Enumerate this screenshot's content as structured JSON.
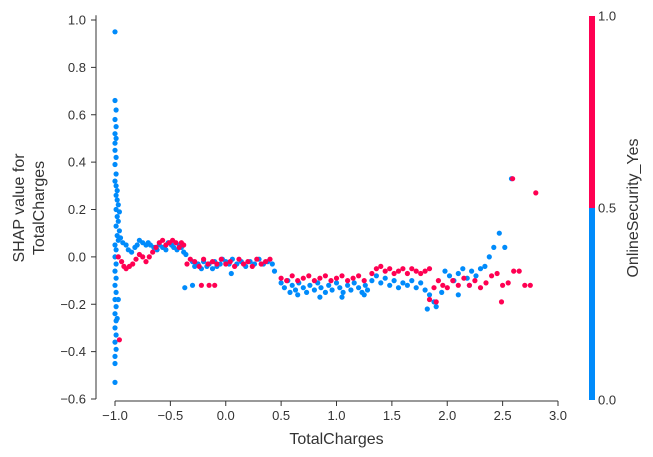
{
  "chart_data": {
    "type": "scatter",
    "xlabel": "TotalCharges",
    "ylabel_line1": "SHAP value for",
    "ylabel_line2": "TotalCharges",
    "xlim": [
      -1.15,
      3.0
    ],
    "ylim": [
      -0.6,
      1.02
    ],
    "xticks": [
      -1.0,
      -0.5,
      0.0,
      0.5,
      1.0,
      1.5,
      2.0,
      2.5,
      3.0
    ],
    "xtick_labels": [
      "−1.0",
      "−0.5",
      "0.0",
      "0.5",
      "1.0",
      "1.5",
      "2.0",
      "2.5",
      "3.0"
    ],
    "yticks": [
      -0.6,
      -0.4,
      -0.2,
      0.0,
      0.2,
      0.4,
      0.6,
      0.8,
      1.0
    ],
    "ytick_labels": [
      "−0.6",
      "−0.4",
      "−0.2",
      "0.0",
      "0.2",
      "0.4",
      "0.6",
      "0.8",
      "1.0"
    ],
    "grid": false,
    "colorbar": {
      "label": "OnlineSecurity_Yes",
      "tick_labels": [
        "0.0",
        "0.5",
        "1.0"
      ],
      "low_color": "#008bfb",
      "high_color": "#ff0052"
    },
    "series": [
      {
        "name": "OnlineSecurity_Yes = 0",
        "color": "#008bfb",
        "points": [
          [
            -1.0,
            0.95
          ],
          [
            -1.0,
            0.66
          ],
          [
            -0.99,
            0.62
          ],
          [
            -1.0,
            0.58
          ],
          [
            -0.99,
            0.55
          ],
          [
            -1.0,
            0.52
          ],
          [
            -0.99,
            0.5
          ],
          [
            -1.0,
            0.48
          ],
          [
            -1.0,
            0.45
          ],
          [
            -0.99,
            0.42
          ],
          [
            -1.0,
            0.39
          ],
          [
            -0.99,
            0.35
          ],
          [
            -1.0,
            0.32
          ],
          [
            -0.99,
            0.3
          ],
          [
            -0.98,
            0.28
          ],
          [
            -0.99,
            0.26
          ],
          [
            -0.98,
            0.24
          ],
          [
            -0.97,
            0.22
          ],
          [
            -0.99,
            0.2
          ],
          [
            -0.96,
            0.19
          ],
          [
            -0.98,
            0.17
          ],
          [
            -0.97,
            0.15
          ],
          [
            -0.99,
            0.13
          ],
          [
            -0.96,
            0.11
          ],
          [
            -0.98,
            0.09
          ],
          [
            -0.97,
            0.07
          ],
          [
            -1.0,
            0.05
          ],
          [
            -0.99,
            0.03
          ],
          [
            -1.0,
            0.0
          ],
          [
            -0.99,
            -0.03
          ],
          [
            -1.0,
            -0.06
          ],
          [
            -0.99,
            -0.09
          ],
          [
            -1.0,
            -0.12
          ],
          [
            -0.99,
            -0.15
          ],
          [
            -1.0,
            -0.18
          ],
          [
            -0.99,
            -0.21
          ],
          [
            -1.0,
            -0.24
          ],
          [
            -0.99,
            -0.27
          ],
          [
            -1.0,
            -0.3
          ],
          [
            -0.99,
            -0.33
          ],
          [
            -1.0,
            -0.36
          ],
          [
            -0.99,
            -0.39
          ],
          [
            -1.0,
            -0.42
          ],
          [
            -1.0,
            -0.45
          ],
          [
            -1.0,
            -0.53
          ],
          [
            -0.97,
            -0.18
          ],
          [
            -0.98,
            -0.26
          ],
          [
            -0.95,
            0.08
          ],
          [
            -0.93,
            0.06
          ],
          [
            -0.9,
            0.05
          ],
          [
            -0.88,
            0.03
          ],
          [
            -0.85,
            0.02
          ],
          [
            -0.82,
            0.04
          ],
          [
            -0.8,
            0.05
          ],
          [
            -0.78,
            0.07
          ],
          [
            -0.75,
            0.06
          ],
          [
            -0.72,
            0.05
          ],
          [
            -0.7,
            0.06
          ],
          [
            -0.68,
            0.05
          ],
          [
            -0.65,
            0.04
          ],
          [
            -0.62,
            0.03
          ],
          [
            -0.6,
            0.05
          ],
          [
            -0.57,
            0.04
          ],
          [
            -0.54,
            0.03
          ],
          [
            -0.52,
            0.06
          ],
          [
            -0.49,
            0.05
          ],
          [
            -0.47,
            0.04
          ],
          [
            -0.44,
            0.03
          ],
          [
            -0.42,
            0.05
          ],
          [
            -0.4,
            0.04
          ],
          [
            -0.38,
            0.02
          ],
          [
            -0.36,
            0.01
          ],
          [
            -0.3,
            -0.02
          ],
          [
            -0.28,
            -0.04
          ],
          [
            -0.25,
            -0.03
          ],
          [
            -0.22,
            -0.05
          ],
          [
            -0.2,
            -0.02
          ],
          [
            -0.17,
            -0.04
          ],
          [
            -0.15,
            -0.03
          ],
          [
            -0.12,
            -0.05
          ],
          [
            -0.1,
            -0.02
          ],
          [
            -0.08,
            -0.04
          ],
          [
            -0.05,
            -0.03
          ],
          [
            -0.03,
            -0.01
          ],
          [
            0.0,
            -0.02
          ],
          [
            0.03,
            -0.03
          ],
          [
            0.06,
            -0.01
          ],
          [
            0.1,
            -0.03
          ],
          [
            0.14,
            -0.02
          ],
          [
            0.18,
            -0.04
          ],
          [
            0.22,
            -0.02
          ],
          [
            0.26,
            -0.03
          ],
          [
            0.3,
            -0.01
          ],
          [
            0.34,
            -0.03
          ],
          [
            0.38,
            -0.02
          ],
          [
            0.42,
            -0.03
          ],
          [
            0.44,
            -0.06
          ],
          [
            -0.37,
            -0.13
          ],
          [
            -0.3,
            -0.12
          ],
          [
            0.05,
            -0.07
          ],
          [
            0.5,
            -0.11
          ],
          [
            0.53,
            -0.13
          ],
          [
            0.56,
            -0.1
          ],
          [
            0.58,
            -0.15
          ],
          [
            0.6,
            -0.12
          ],
          [
            0.63,
            -0.14
          ],
          [
            0.66,
            -0.11
          ],
          [
            0.7,
            -0.13
          ],
          [
            0.73,
            -0.15
          ],
          [
            0.76,
            -0.12
          ],
          [
            0.8,
            -0.14
          ],
          [
            0.83,
            -0.11
          ],
          [
            0.86,
            -0.13
          ],
          [
            0.9,
            -0.15
          ],
          [
            0.93,
            -0.12
          ],
          [
            0.96,
            -0.14
          ],
          [
            1.0,
            -0.11
          ],
          [
            1.03,
            -0.13
          ],
          [
            1.06,
            -0.15
          ],
          [
            1.1,
            -0.12
          ],
          [
            1.13,
            -0.14
          ],
          [
            1.16,
            -0.11
          ],
          [
            1.2,
            -0.13
          ],
          [
            1.23,
            -0.15
          ],
          [
            1.26,
            -0.12
          ],
          [
            1.28,
            -0.14
          ],
          [
            0.85,
            -0.17
          ],
          [
            1.05,
            -0.17
          ],
          [
            1.25,
            -0.16
          ],
          [
            0.65,
            -0.16
          ],
          [
            1.32,
            -0.1
          ],
          [
            1.36,
            -0.08
          ],
          [
            1.4,
            -0.11
          ],
          [
            1.44,
            -0.09
          ],
          [
            1.48,
            -0.12
          ],
          [
            1.52,
            -0.1
          ],
          [
            1.56,
            -0.13
          ],
          [
            1.6,
            -0.11
          ],
          [
            1.64,
            -0.12
          ],
          [
            1.68,
            -0.1
          ],
          [
            1.72,
            -0.13
          ],
          [
            1.76,
            -0.11
          ],
          [
            1.8,
            -0.14
          ],
          [
            1.84,
            -0.16
          ],
          [
            1.88,
            -0.19
          ],
          [
            1.9,
            -0.21
          ],
          [
            1.82,
            -0.22
          ],
          [
            1.95,
            -0.15
          ],
          [
            1.98,
            -0.06
          ],
          [
            2.02,
            -0.08
          ],
          [
            2.06,
            -0.1
          ],
          [
            2.1,
            -0.07
          ],
          [
            2.14,
            -0.05
          ],
          [
            2.18,
            -0.09
          ],
          [
            2.22,
            -0.06
          ],
          [
            2.26,
            -0.08
          ],
          [
            2.3,
            -0.05
          ],
          [
            2.34,
            -0.04
          ],
          [
            2.38,
            0.0
          ],
          [
            2.42,
            0.04
          ],
          [
            2.47,
            0.1
          ],
          [
            2.52,
            0.04
          ],
          [
            2.58,
            0.33
          ],
          [
            2.1,
            -0.16
          ],
          [
            2.2,
            -0.12
          ]
        ]
      },
      {
        "name": "OnlineSecurity_Yes = 1",
        "color": "#ff0052",
        "points": [
          [
            -0.96,
            -0.35
          ],
          [
            -0.97,
            0.0
          ],
          [
            -0.94,
            -0.02
          ],
          [
            -0.92,
            -0.04
          ],
          [
            -0.9,
            -0.05
          ],
          [
            -0.87,
            -0.04
          ],
          [
            -0.84,
            -0.03
          ],
          [
            -0.81,
            -0.01
          ],
          [
            -0.78,
            0.01
          ],
          [
            -0.75,
            0.0
          ],
          [
            -0.72,
            -0.02
          ],
          [
            -0.69,
            0.0
          ],
          [
            -0.66,
            0.02
          ],
          [
            -0.63,
            0.04
          ],
          [
            -0.6,
            0.06
          ],
          [
            -0.57,
            0.07
          ],
          [
            -0.54,
            0.05
          ],
          [
            -0.51,
            0.06
          ],
          [
            -0.48,
            0.07
          ],
          [
            -0.45,
            0.06
          ],
          [
            -0.42,
            0.04
          ],
          [
            -0.4,
            0.06
          ],
          [
            -0.38,
            0.05
          ],
          [
            -0.35,
            -0.03
          ],
          [
            -0.32,
            -0.01
          ],
          [
            -0.28,
            -0.02
          ],
          [
            -0.24,
            -0.04
          ],
          [
            -0.2,
            -0.01
          ],
          [
            -0.16,
            -0.03
          ],
          [
            -0.12,
            -0.02
          ],
          [
            -0.08,
            -0.03
          ],
          [
            -0.04,
            -0.01
          ],
          [
            0.0,
            -0.03
          ],
          [
            0.04,
            -0.02
          ],
          [
            0.08,
            -0.04
          ],
          [
            0.12,
            -0.01
          ],
          [
            0.16,
            -0.03
          ],
          [
            0.2,
            -0.02
          ],
          [
            0.24,
            -0.04
          ],
          [
            0.28,
            -0.01
          ],
          [
            0.32,
            -0.03
          ],
          [
            0.36,
            -0.02
          ],
          [
            0.4,
            -0.01
          ],
          [
            -0.22,
            -0.12
          ],
          [
            -0.15,
            -0.12
          ],
          [
            -0.1,
            -0.12
          ],
          [
            0.5,
            -0.09
          ],
          [
            0.55,
            -0.1
          ],
          [
            0.6,
            -0.08
          ],
          [
            0.65,
            -0.1
          ],
          [
            0.7,
            -0.09
          ],
          [
            0.75,
            -0.08
          ],
          [
            0.8,
            -0.1
          ],
          [
            0.85,
            -0.09
          ],
          [
            0.9,
            -0.08
          ],
          [
            0.95,
            -0.1
          ],
          [
            1.0,
            -0.09
          ],
          [
            1.05,
            -0.08
          ],
          [
            1.1,
            -0.1
          ],
          [
            1.15,
            -0.09
          ],
          [
            1.2,
            -0.08
          ],
          [
            1.25,
            -0.1
          ],
          [
            1.32,
            -0.07
          ],
          [
            1.36,
            -0.05
          ],
          [
            1.4,
            -0.04
          ],
          [
            1.44,
            -0.06
          ],
          [
            1.48,
            -0.05
          ],
          [
            1.52,
            -0.07
          ],
          [
            1.56,
            -0.06
          ],
          [
            1.6,
            -0.05
          ],
          [
            1.64,
            -0.07
          ],
          [
            1.68,
            -0.05
          ],
          [
            1.72,
            -0.06
          ],
          [
            1.76,
            -0.07
          ],
          [
            1.8,
            -0.06
          ],
          [
            1.84,
            -0.05
          ],
          [
            1.88,
            -0.13
          ],
          [
            1.92,
            -0.1
          ],
          [
            1.84,
            -0.18
          ],
          [
            1.9,
            -0.19
          ],
          [
            1.96,
            -0.12
          ],
          [
            2.0,
            -0.13
          ],
          [
            2.05,
            -0.1
          ],
          [
            2.1,
            -0.12
          ],
          [
            2.15,
            -0.09
          ],
          [
            2.2,
            -0.12
          ],
          [
            2.25,
            -0.1
          ],
          [
            2.3,
            -0.13
          ],
          [
            2.35,
            -0.11
          ],
          [
            2.4,
            -0.08
          ],
          [
            2.45,
            -0.07
          ],
          [
            2.49,
            -0.19
          ],
          [
            2.5,
            -0.12
          ],
          [
            2.55,
            -0.11
          ],
          [
            2.6,
            -0.06
          ],
          [
            2.65,
            -0.06
          ],
          [
            2.7,
            -0.12
          ],
          [
            2.75,
            -0.12
          ],
          [
            2.8,
            0.27
          ],
          [
            2.59,
            0.33
          ]
        ]
      }
    ]
  }
}
